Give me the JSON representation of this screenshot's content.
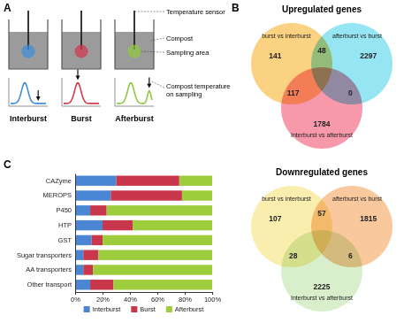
{
  "panel_labels": [
    "A",
    "B",
    "C"
  ],
  "diagram": {
    "callouts": [
      "Temperature sensor",
      "Compost",
      "Sampling area"
    ],
    "curve_callout": [
      "Compost temperature",
      "on sampling"
    ],
    "stages": [
      {
        "label": "Interburst",
        "color": "#3d8fd8"
      },
      {
        "label": "Burst",
        "color": "#d6364f"
      },
      {
        "label": "Afterburst",
        "color": "#8fca3c"
      }
    ]
  },
  "chart_data": [
    {
      "type": "venn",
      "title": "Upregulated genes",
      "sets": [
        {
          "name": "burst vs interburst",
          "color": "#f9b42d"
        },
        {
          "name": "afterburst vs burst",
          "color": "#4fd4ea"
        },
        {
          "name": "Interburst vs afterburst",
          "color": "#f25572"
        }
      ],
      "regions": [
        {
          "sets": [
            0
          ],
          "value": 141
        },
        {
          "sets": [
            1
          ],
          "value": 2297
        },
        {
          "sets": [
            2
          ],
          "value": 1784
        },
        {
          "sets": [
            0,
            1
          ],
          "value": 48
        },
        {
          "sets": [
            0,
            2
          ],
          "value": 117
        },
        {
          "sets": [
            1,
            2
          ],
          "value": 0
        }
      ]
    },
    {
      "type": "venn",
      "title": "Downregulated genes",
      "sets": [
        {
          "name": "burst vs interburst",
          "color": "#f6e37a"
        },
        {
          "name": "afterburst vs burst",
          "color": "#f5a35b"
        },
        {
          "name": "Interburst vs afterburst",
          "color": "#bfe5a8"
        }
      ],
      "regions": [
        {
          "sets": [
            0
          ],
          "value": 107
        },
        {
          "sets": [
            1
          ],
          "value": 1815
        },
        {
          "sets": [
            2
          ],
          "value": 2225
        },
        {
          "sets": [
            0,
            1
          ],
          "value": 57
        },
        {
          "sets": [
            0,
            2
          ],
          "value": 28
        },
        {
          "sets": [
            1,
            2
          ],
          "value": 6
        }
      ]
    },
    {
      "type": "bar",
      "orientation": "horizontal",
      "stacked": true,
      "grid": false,
      "legend": "bottom",
      "categories": [
        "CAZyme",
        "MEROPS",
        "P450",
        "HTP",
        "GST",
        "Sugar transporters",
        "AA transporters",
        "Other transport"
      ],
      "series": [
        {
          "name": "Interburst",
          "color": "#4a86d4",
          "values": [
            30,
            26,
            11,
            20,
            12,
            6,
            6,
            11
          ]
        },
        {
          "name": "Burst",
          "color": "#c8374b",
          "values": [
            46,
            52,
            12,
            22,
            8,
            11,
            7,
            17
          ]
        },
        {
          "name": "Afterburst",
          "color": "#9dcd3c",
          "values": [
            24,
            22,
            77,
            58,
            80,
            83,
            87,
            72
          ]
        }
      ],
      "xlim": [
        0,
        100
      ],
      "xticks": [
        {
          "value": 0,
          "label": "0%"
        },
        {
          "value": 20,
          "label": "20%"
        },
        {
          "value": 40,
          "label": "40%"
        },
        {
          "value": 60,
          "label": "60%"
        },
        {
          "value": 80,
          "label": "80%"
        },
        {
          "value": 100,
          "label": "100%"
        }
      ]
    }
  ]
}
